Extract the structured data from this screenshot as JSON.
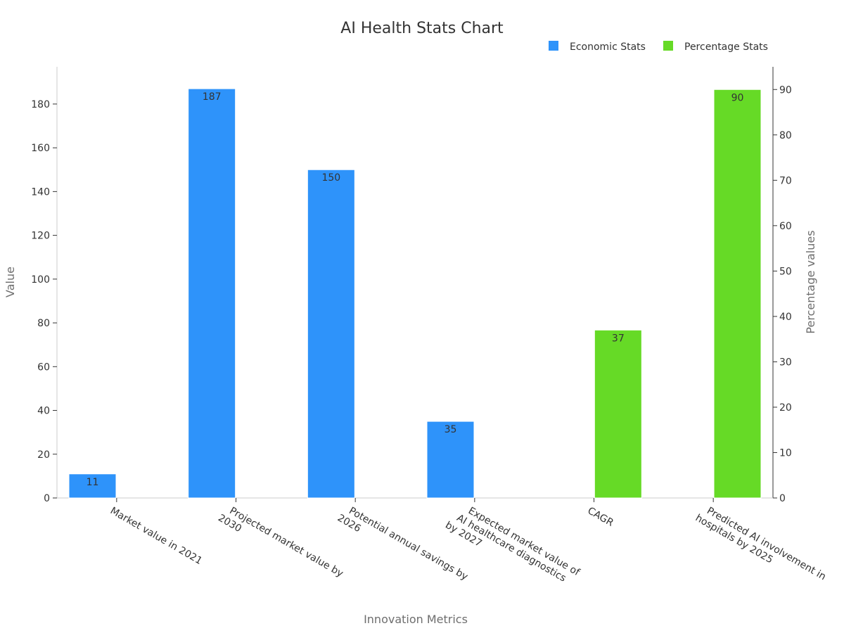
{
  "chart_data": {
    "type": "bar",
    "title": "AI Health Stats Chart",
    "xlabel": "Innovation Metrics",
    "ylabel": "Value",
    "y2label": "Percentage values",
    "categories": [
      [
        "Market value in 2021"
      ],
      [
        "Projected market value by",
        "2030"
      ],
      [
        "Potential annual savings by",
        "2026"
      ],
      [
        "Expected market value of",
        "AI healthcare diagnostics",
        "by 2027"
      ],
      [
        "CAGR"
      ],
      [
        "Predicted AI involvement in",
        "hospitals by 2025"
      ]
    ],
    "series": [
      {
        "name": "Economic Stats",
        "axis": "left",
        "color": "#2e93fa",
        "values": [
          11,
          187,
          150,
          35,
          null,
          null
        ]
      },
      {
        "name": "Percentage Stats",
        "axis": "right",
        "color": "#66da26",
        "values": [
          null,
          null,
          null,
          null,
          37,
          90
        ]
      }
    ],
    "ylim": [
      0,
      197
    ],
    "y_ticks": [
      0,
      20,
      40,
      60,
      80,
      100,
      120,
      140,
      160,
      180
    ],
    "y2lim": [
      0,
      95
    ],
    "y2_ticks": [
      0,
      10,
      20,
      30,
      40,
      50,
      60,
      70,
      80,
      90
    ],
    "legend_position": "top-right",
    "grid": false
  }
}
